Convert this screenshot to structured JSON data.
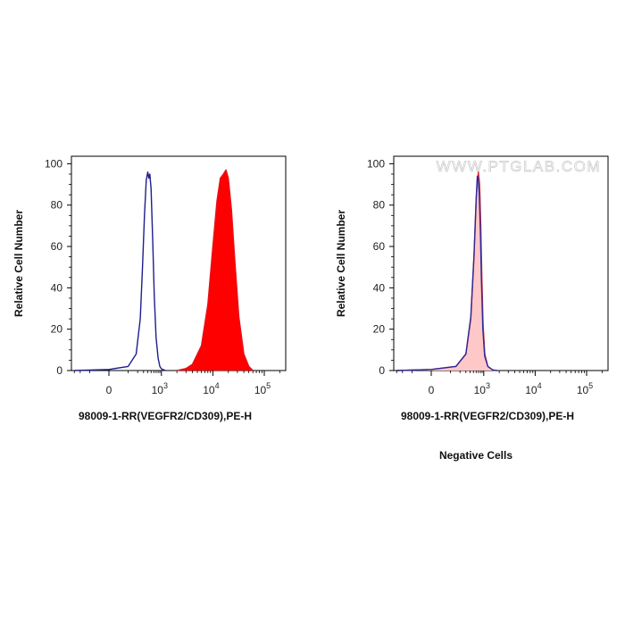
{
  "chart_data": [
    {
      "type": "area",
      "xlabel": "98009-1-RR(VEGFR2/CD309),PE-H",
      "ylabel": "Relative Cell Number",
      "subtitle": "",
      "watermark": "",
      "ylim": [
        0,
        100
      ],
      "yticks": [
        0,
        20,
        40,
        60,
        80,
        100
      ],
      "x_scale": "biexponential",
      "xticks": [
        {
          "base": "0",
          "exp": ""
        },
        {
          "base": "10",
          "exp": "3"
        },
        {
          "base": "10",
          "exp": "4"
        },
        {
          "base": "10",
          "exp": "5"
        }
      ],
      "series": [
        {
          "color": "#1e1e8c",
          "fill": "none",
          "points": [
            [
              -300,
              0
            ],
            [
              0,
              0.5
            ],
            [
              100,
              2
            ],
            [
              180,
              8
            ],
            [
              240,
              25
            ],
            [
              280,
              50
            ],
            [
              320,
              75
            ],
            [
              360,
              92
            ],
            [
              400,
              96
            ],
            [
              430,
              93
            ],
            [
              460,
              95
            ],
            [
              500,
              88
            ],
            [
              560,
              62
            ],
            [
              620,
              36
            ],
            [
              700,
              16
            ],
            [
              800,
              6
            ],
            [
              900,
              2
            ],
            [
              1000,
              0.8
            ],
            [
              1200,
              0
            ]
          ]
        },
        {
          "color": "#e8101a",
          "fill": "#ff0000",
          "points": [
            [
              2000,
              0
            ],
            [
              3000,
              1
            ],
            [
              4000,
              3
            ],
            [
              6000,
              12
            ],
            [
              8000,
              32
            ],
            [
              10000,
              60
            ],
            [
              12000,
              82
            ],
            [
              14000,
              93
            ],
            [
              16000,
              95
            ],
            [
              18000,
              97
            ],
            [
              20000,
              93
            ],
            [
              23000,
              78
            ],
            [
              27000,
              52
            ],
            [
              32000,
              26
            ],
            [
              40000,
              8
            ],
            [
              50000,
              2
            ],
            [
              60000,
              0
            ]
          ]
        }
      ]
    },
    {
      "type": "area",
      "xlabel": "98009-1-RR(VEGFR2/CD309),PE-H",
      "ylabel": "Relative Cell Number",
      "subtitle": "Negative Cells",
      "watermark": "WWW.PTGLAB.COM",
      "ylim": [
        0,
        100
      ],
      "yticks": [
        0,
        20,
        40,
        60,
        80,
        100
      ],
      "x_scale": "biexponential",
      "xticks": [
        {
          "base": "0",
          "exp": ""
        },
        {
          "base": "10",
          "exp": "3"
        },
        {
          "base": "10",
          "exp": "4"
        },
        {
          "base": "10",
          "exp": "5"
        }
      ],
      "series": [
        {
          "color": "#e03030",
          "fill": "#ffc8c8",
          "points": [
            [
              -300,
              0
            ],
            [
              0,
              0.5
            ],
            [
              150,
              2
            ],
            [
              300,
              8
            ],
            [
              420,
              25
            ],
            [
              520,
              55
            ],
            [
              600,
              82
            ],
            [
              650,
              92
            ],
            [
              700,
              96
            ],
            [
              760,
              90
            ],
            [
              820,
              70
            ],
            [
              880,
              45
            ],
            [
              960,
              22
            ],
            [
              1050,
              8
            ],
            [
              1200,
              2
            ],
            [
              1500,
              0.3
            ],
            [
              1800,
              0
            ]
          ]
        },
        {
          "color": "#2a2a9a",
          "fill": "none",
          "points": [
            [
              -300,
              0
            ],
            [
              0,
              0.5
            ],
            [
              150,
              2
            ],
            [
              300,
              8
            ],
            [
              420,
              26
            ],
            [
              520,
              56
            ],
            [
              600,
              83
            ],
            [
              650,
              94
            ],
            [
              690,
              93
            ],
            [
              740,
              85
            ],
            [
              800,
              66
            ],
            [
              860,
              42
            ],
            [
              940,
              20
            ],
            [
              1040,
              7
            ],
            [
              1200,
              2
            ],
            [
              1500,
              0.3
            ],
            [
              1800,
              0
            ]
          ]
        }
      ]
    }
  ]
}
